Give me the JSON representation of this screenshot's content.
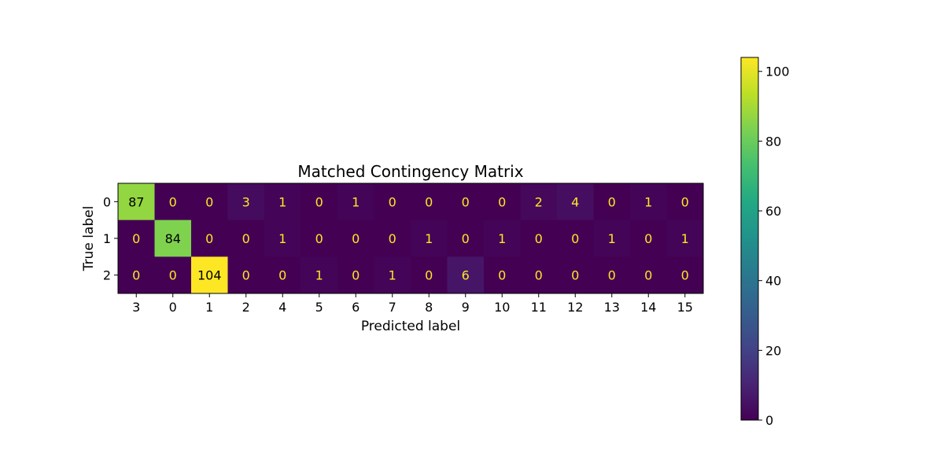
{
  "chart_data": {
    "type": "heatmap",
    "title": "Matched Contingency Matrix",
    "xlabel": "Predicted label",
    "ylabel": "True label",
    "x_categories": [
      "3",
      "0",
      "1",
      "2",
      "4",
      "5",
      "6",
      "7",
      "8",
      "9",
      "10",
      "11",
      "12",
      "13",
      "14",
      "15"
    ],
    "y_categories": [
      "0",
      "1",
      "2"
    ],
    "values": [
      [
        87,
        0,
        0,
        3,
        1,
        0,
        1,
        0,
        0,
        0,
        0,
        2,
        4,
        0,
        1,
        0
      ],
      [
        0,
        84,
        0,
        0,
        1,
        0,
        0,
        0,
        1,
        0,
        1,
        0,
        0,
        1,
        0,
        1
      ],
      [
        0,
        0,
        104,
        0,
        0,
        1,
        0,
        1,
        0,
        6,
        0,
        0,
        0,
        0,
        0,
        0
      ]
    ],
    "colormap": "viridis",
    "color_range": [
      0,
      104
    ],
    "colorbar": {
      "ticks": [
        0,
        20,
        40,
        60,
        80,
        100
      ],
      "tick_labels": [
        "0",
        "20",
        "40",
        "60",
        "80",
        "100"
      ]
    },
    "grid": false
  }
}
